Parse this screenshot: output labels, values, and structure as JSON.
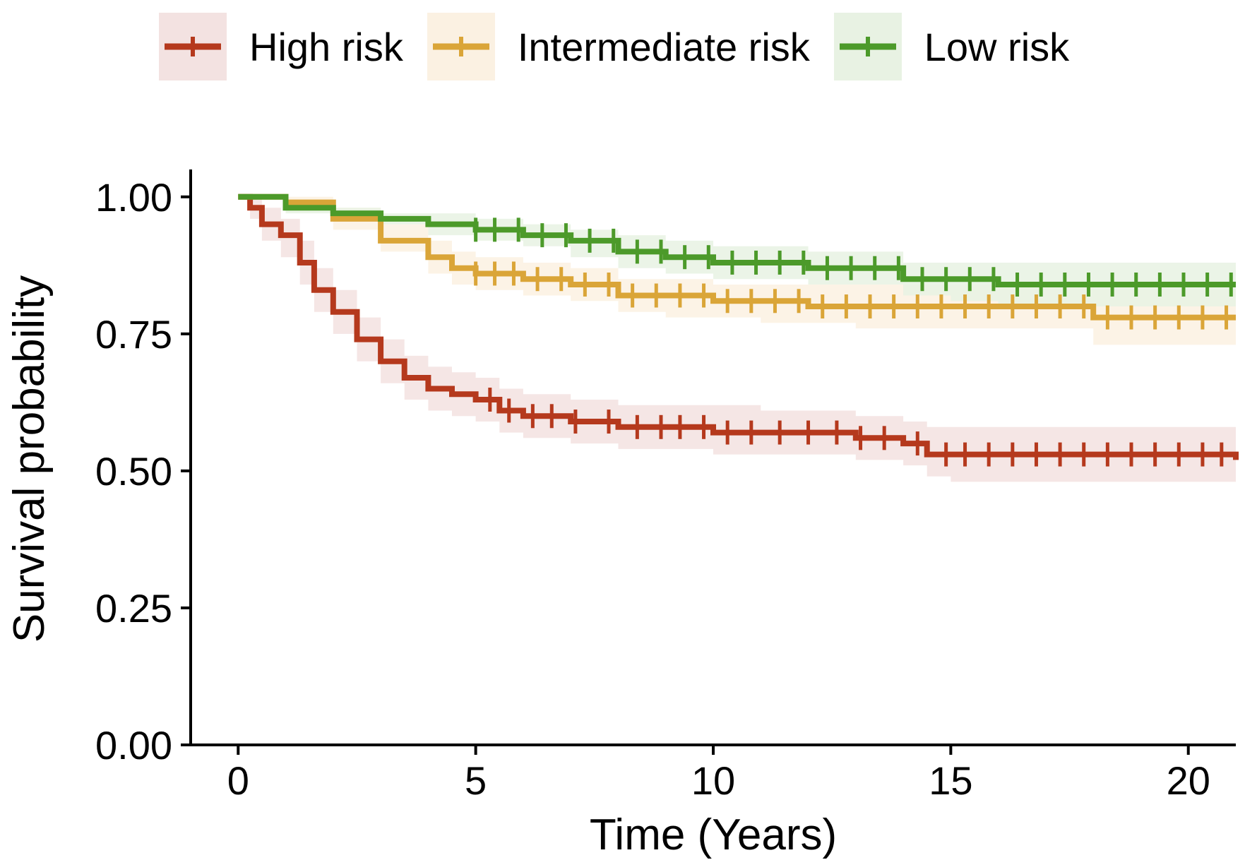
{
  "chart_data": {
    "type": "line",
    "title": "",
    "xlabel": "Time (Years)",
    "ylabel": "Survival probability",
    "xlim": [
      -1,
      21
    ],
    "ylim": [
      0,
      1.05
    ],
    "x_ticks": [
      0,
      5,
      10,
      15,
      20
    ],
    "x_tick_labels": [
      "0",
      "5",
      "10",
      "15",
      "20"
    ],
    "y_ticks": [
      0,
      0.25,
      0.5,
      0.75,
      1.0
    ],
    "y_tick_labels": [
      "0.00",
      "0.25",
      "0.50",
      "0.75",
      "1.00"
    ],
    "grid": false,
    "legend_position": "top",
    "series": [
      {
        "name": "High risk",
        "color": "#B5391D",
        "band_color": "#F3E2E1",
        "x": [
          0,
          0.25,
          0.5,
          0.9,
          1.3,
          1.6,
          2.0,
          2.5,
          3.0,
          3.5,
          4.0,
          4.5,
          5.0,
          5.5,
          6.0,
          7.0,
          8.0,
          9.0,
          10.0,
          11.0,
          12.0,
          13.0,
          14.0,
          14.5,
          15.0,
          16.0,
          17.0,
          18.0,
          19.0,
          20.0,
          21.0
        ],
        "values": [
          1.0,
          0.98,
          0.95,
          0.93,
          0.88,
          0.83,
          0.79,
          0.74,
          0.7,
          0.67,
          0.65,
          0.64,
          0.63,
          0.61,
          0.6,
          0.59,
          0.58,
          0.58,
          0.57,
          0.57,
          0.57,
          0.56,
          0.55,
          0.53,
          0.53,
          0.53,
          0.53,
          0.53,
          0.53,
          0.53,
          0.52
        ],
        "lower": [
          1.0,
          0.96,
          0.92,
          0.89,
          0.84,
          0.79,
          0.75,
          0.7,
          0.66,
          0.63,
          0.61,
          0.6,
          0.59,
          0.57,
          0.56,
          0.55,
          0.54,
          0.54,
          0.53,
          0.53,
          0.53,
          0.52,
          0.51,
          0.49,
          0.48,
          0.48,
          0.48,
          0.48,
          0.48,
          0.48,
          0.44
        ],
        "upper": [
          1.0,
          1.0,
          0.98,
          0.96,
          0.92,
          0.87,
          0.83,
          0.78,
          0.74,
          0.71,
          0.69,
          0.68,
          0.67,
          0.65,
          0.64,
          0.63,
          0.62,
          0.62,
          0.62,
          0.61,
          0.61,
          0.6,
          0.59,
          0.58,
          0.58,
          0.58,
          0.58,
          0.58,
          0.58,
          0.58,
          0.58
        ],
        "censor_x": [
          5.3,
          5.7,
          6.2,
          6.6,
          7.1,
          7.8,
          8.4,
          8.9,
          9.3,
          9.8,
          10.3,
          10.8,
          11.4,
          12.0,
          12.6,
          13.1,
          13.6,
          14.3,
          14.9,
          15.3,
          15.8,
          16.3,
          16.8,
          17.3,
          17.8,
          18.3,
          18.8,
          19.3,
          19.8,
          20.3,
          20.7
        ]
      },
      {
        "name": "Intermediate risk",
        "color": "#DAA538",
        "band_color": "#FBF1E2",
        "x": [
          0,
          1.0,
          2.0,
          3.0,
          4.0,
          4.5,
          5.0,
          6.0,
          7.0,
          8.0,
          9.0,
          10.0,
          11.0,
          12.0,
          13.0,
          14.0,
          15.0,
          16.0,
          17.0,
          18.0,
          19.0,
          20.0,
          21.0
        ],
        "values": [
          1.0,
          0.99,
          0.96,
          0.92,
          0.89,
          0.87,
          0.86,
          0.85,
          0.84,
          0.82,
          0.82,
          0.81,
          0.81,
          0.8,
          0.8,
          0.8,
          0.8,
          0.8,
          0.8,
          0.78,
          0.78,
          0.78,
          0.78
        ],
        "lower": [
          1.0,
          0.98,
          0.94,
          0.9,
          0.86,
          0.84,
          0.83,
          0.82,
          0.81,
          0.79,
          0.78,
          0.78,
          0.77,
          0.77,
          0.76,
          0.76,
          0.76,
          0.76,
          0.76,
          0.73,
          0.73,
          0.73,
          0.73
        ],
        "upper": [
          1.0,
          1.0,
          0.98,
          0.95,
          0.92,
          0.9,
          0.89,
          0.88,
          0.87,
          0.85,
          0.85,
          0.84,
          0.84,
          0.84,
          0.84,
          0.84,
          0.84,
          0.84,
          0.84,
          0.83,
          0.83,
          0.83,
          0.83
        ],
        "censor_x": [
          5.0,
          5.4,
          5.8,
          6.3,
          6.8,
          7.3,
          7.8,
          8.3,
          8.8,
          9.3,
          9.8,
          10.3,
          10.8,
          11.3,
          11.8,
          12.3,
          12.8,
          13.3,
          13.8,
          14.3,
          14.8,
          15.3,
          15.8,
          16.3,
          16.8,
          17.3,
          17.8,
          18.3,
          18.8,
          19.3,
          19.8,
          20.3,
          20.8
        ]
      },
      {
        "name": "Low risk",
        "color": "#4C9A2A",
        "band_color": "#E8F2E3",
        "x": [
          0,
          1.0,
          2.0,
          3.0,
          4.0,
          5.0,
          6.0,
          7.0,
          8.0,
          9.0,
          10.0,
          11.0,
          12.0,
          13.0,
          14.0,
          15.0,
          16.0,
          17.0,
          18.0,
          19.0,
          20.0,
          21.0
        ],
        "values": [
          1.0,
          0.98,
          0.97,
          0.96,
          0.95,
          0.94,
          0.93,
          0.92,
          0.9,
          0.89,
          0.88,
          0.88,
          0.87,
          0.87,
          0.85,
          0.85,
          0.84,
          0.84,
          0.84,
          0.84,
          0.84,
          0.84
        ],
        "lower": [
          1.0,
          0.97,
          0.96,
          0.95,
          0.93,
          0.92,
          0.91,
          0.89,
          0.87,
          0.86,
          0.85,
          0.85,
          0.84,
          0.84,
          0.82,
          0.81,
          0.8,
          0.8,
          0.8,
          0.8,
          0.8,
          0.79
        ],
        "upper": [
          1.0,
          0.99,
          0.98,
          0.97,
          0.97,
          0.96,
          0.95,
          0.94,
          0.93,
          0.92,
          0.91,
          0.91,
          0.9,
          0.9,
          0.88,
          0.88,
          0.88,
          0.88,
          0.88,
          0.88,
          0.88,
          0.88
        ],
        "censor_x": [
          5.0,
          5.4,
          5.9,
          6.4,
          6.9,
          7.4,
          7.9,
          8.4,
          8.9,
          9.4,
          9.9,
          10.4,
          10.9,
          11.4,
          11.9,
          12.4,
          12.9,
          13.4,
          13.9,
          14.4,
          14.9,
          15.4,
          15.9,
          16.4,
          16.9,
          17.4,
          17.9,
          18.4,
          18.9,
          19.4,
          19.9,
          20.4,
          20.9
        ]
      }
    ]
  }
}
